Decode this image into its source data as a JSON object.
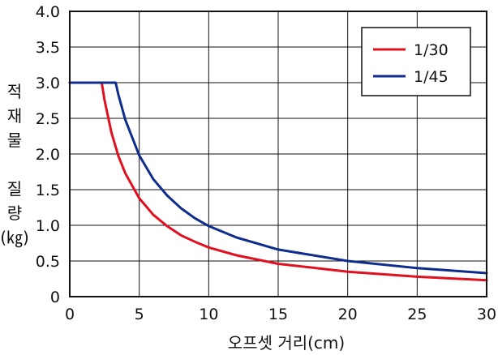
{
  "chart_data": {
    "type": "line",
    "xlabel": "오프셋 거리(cm)",
    "ylabel": "적재물 질량",
    "ylabel_unit": "(㎏)",
    "xlim": [
      0,
      30
    ],
    "ylim": [
      0,
      4.0
    ],
    "x_ticks": [
      0,
      5,
      10,
      15,
      20,
      25,
      30
    ],
    "y_ticks": [
      "0",
      "0.5",
      "1.0",
      "1.5",
      "2.0",
      "2.5",
      "3.0",
      "3.5",
      "4.0"
    ],
    "grid": true,
    "legend_position": "top-right",
    "series": [
      {
        "name": "1/30",
        "color": "#e0101e",
        "x": [
          0,
          2.3,
          2.35,
          2.5,
          3,
          3.5,
          4,
          5,
          6,
          7,
          8,
          9,
          10,
          12,
          15,
          20,
          25,
          30
        ],
        "y": [
          3.0,
          3.0,
          2.94,
          2.76,
          2.3,
          1.97,
          1.73,
          1.38,
          1.15,
          0.99,
          0.86,
          0.77,
          0.69,
          0.58,
          0.46,
          0.35,
          0.28,
          0.23
        ]
      },
      {
        "name": "1/45",
        "color": "#0f2d8c",
        "x": [
          0,
          3.3,
          3.35,
          3.5,
          4,
          5,
          6,
          7,
          8,
          9,
          10,
          12,
          15,
          20,
          25,
          30
        ],
        "y": [
          3.0,
          3.0,
          2.96,
          2.83,
          2.48,
          1.98,
          1.65,
          1.42,
          1.24,
          1.1,
          0.99,
          0.83,
          0.66,
          0.5,
          0.4,
          0.33
        ]
      }
    ]
  }
}
